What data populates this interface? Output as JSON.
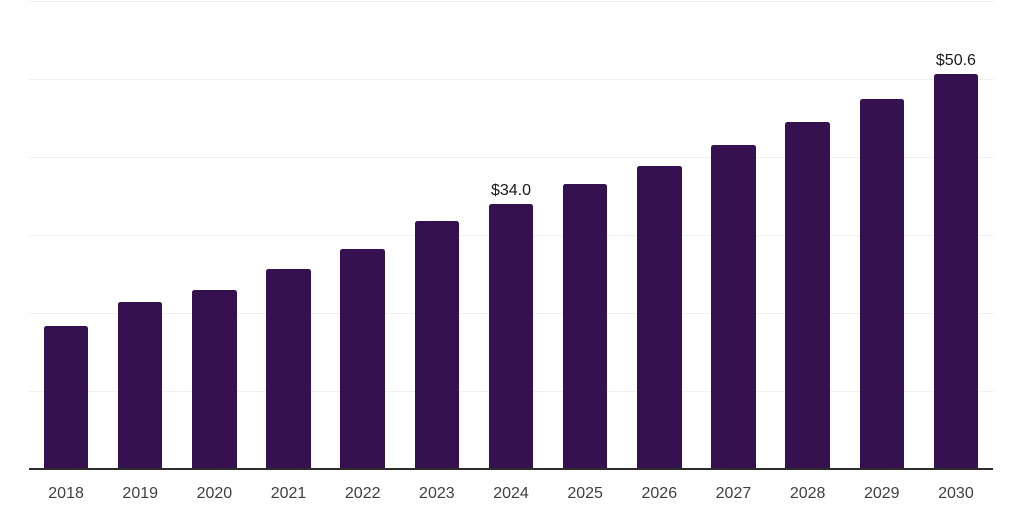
{
  "chart_data": {
    "type": "bar",
    "title": "",
    "xlabel": "",
    "ylabel": "",
    "categories": [
      "2018",
      "2019",
      "2020",
      "2021",
      "2022",
      "2023",
      "2024",
      "2025",
      "2026",
      "2027",
      "2028",
      "2029",
      "2030"
    ],
    "values": [
      18.4,
      21.5,
      23.0,
      25.7,
      28.2,
      31.8,
      34.0,
      36.5,
      38.8,
      41.6,
      44.5,
      47.4,
      50.6
    ],
    "value_labels": {
      "2024": "$34.0",
      "2030": "$50.6"
    },
    "ylim": [
      0,
      60
    ],
    "gridline_values": [
      10,
      20,
      30,
      40,
      50,
      60
    ],
    "grid": "horizontal-light",
    "legend": "none",
    "y_axis_ticks_visible": false,
    "colors": {
      "bar": "#36114f",
      "axis_line": "#2b2b2b",
      "gridline": "#f0f0f0",
      "tick_label": "#404040",
      "value_label": "#1a1a1a",
      "background": "#ffffff"
    }
  }
}
